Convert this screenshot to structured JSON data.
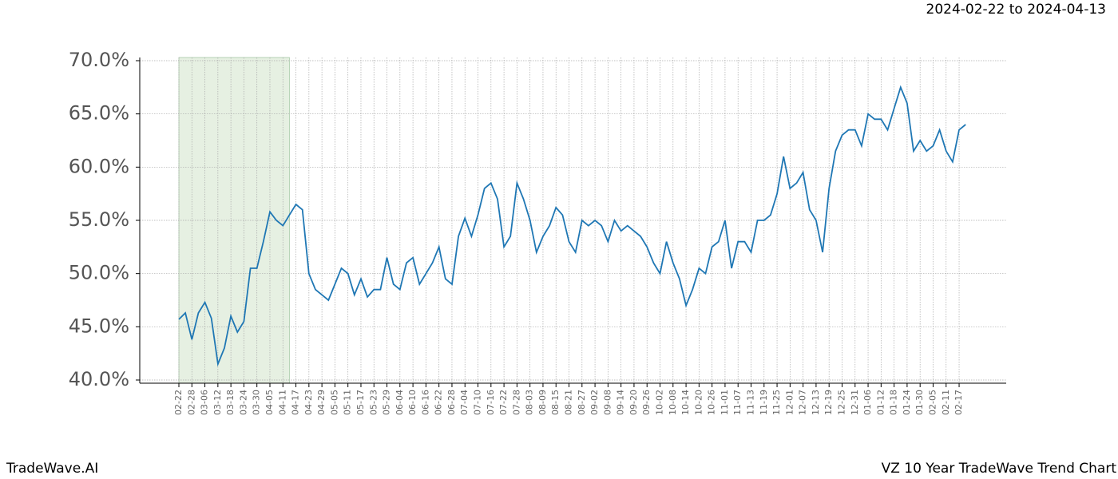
{
  "chart_data": {
    "type": "line",
    "subtitle": "2024-02-22 to 2024-04-13",
    "footer_left": "TradeWave.AI",
    "footer_right": "VZ 10 Year TradeWave Trend Chart",
    "categories": [
      "02-22",
      null,
      "02-28",
      null,
      "03-06",
      null,
      "03-12",
      null,
      "03-18",
      null,
      "03-24",
      null,
      "03-30",
      null,
      "04-05",
      null,
      "04-11",
      null,
      "04-17",
      null,
      "04-23",
      null,
      "04-29",
      null,
      "05-05",
      null,
      "05-11",
      null,
      "05-17",
      null,
      "05-23",
      null,
      "05-29",
      null,
      "06-04",
      null,
      "06-10",
      null,
      "06-16",
      null,
      "06-22",
      null,
      "06-28",
      null,
      "07-04",
      null,
      "07-10",
      null,
      "07-16",
      null,
      "07-22",
      null,
      "07-28",
      null,
      "08-03",
      null,
      "08-09",
      null,
      "08-15",
      null,
      "08-21",
      null,
      "08-27",
      null,
      "09-02",
      null,
      "09-08",
      null,
      "09-14",
      null,
      "09-20",
      null,
      "09-26",
      null,
      "10-02",
      null,
      "10-08",
      null,
      "10-14",
      null,
      "10-20",
      null,
      "10-26",
      null,
      "11-01",
      null,
      "11-07",
      null,
      "11-13",
      null,
      "11-19",
      null,
      "11-25",
      null,
      "12-01",
      null,
      "12-07",
      null,
      "12-13",
      null,
      "12-19",
      null,
      "12-25",
      null,
      "12-31",
      null,
      "01-06",
      null,
      "01-12",
      null,
      "01-18",
      null,
      "01-24",
      null,
      "01-30",
      null,
      "02-05",
      null,
      "02-11",
      null,
      "02-17",
      null
    ],
    "series": [
      {
        "color": "#1f77b4",
        "values": [
          45.7,
          46.3,
          43.8,
          46.3,
          47.3,
          45.8,
          41.5,
          43.0,
          46.0,
          44.5,
          45.5,
          50.5,
          50.5,
          53.0,
          55.8,
          55.0,
          54.5,
          55.5,
          56.5,
          56.0,
          50.0,
          48.5,
          48.0,
          47.5,
          49.0,
          50.5,
          50.0,
          48.0,
          49.5,
          47.8,
          48.5,
          48.5,
          51.5,
          49.0,
          48.5,
          51.0,
          51.5,
          49.0,
          50.0,
          51.0,
          52.5,
          49.5,
          49.0,
          53.5,
          55.2,
          53.5,
          55.5,
          58.0,
          58.5,
          57.0,
          52.5,
          53.5,
          58.5,
          57.0,
          55.0,
          52.0,
          53.5,
          54.5,
          56.2,
          55.5,
          53.0,
          52.0,
          55.0,
          54.5,
          55.0,
          54.5,
          53.0,
          55.0,
          54.0,
          54.5,
          54.0,
          53.5,
          52.5,
          51.0,
          50.0,
          53.0,
          51.0,
          49.5,
          47.0,
          48.5,
          50.5,
          50.0,
          52.5,
          53.0,
          55.0,
          50.5,
          53.0,
          53.0,
          52.0,
          55.0,
          55.0,
          55.5,
          57.5,
          61.0,
          58.0,
          58.5,
          59.5,
          56.0,
          55.0,
          52.0,
          58.0,
          61.5,
          63.0,
          63.5,
          63.5,
          62.0,
          65.0,
          64.5,
          64.5,
          63.5,
          65.5,
          67.5,
          66.0,
          61.5,
          62.5,
          61.5,
          62.0,
          63.5,
          61.5,
          60.5,
          63.5,
          64.0
        ]
      }
    ],
    "highlight_span": [
      0,
      17
    ],
    "highlight_color": "#e6f0e2",
    "ylim": [
      39.7,
      70.3
    ],
    "yticks": [
      {
        "value": 40,
        "label": "40.0%"
      },
      {
        "value": 45,
        "label": "45.0%"
      },
      {
        "value": 50,
        "label": "50.0%"
      },
      {
        "value": 55,
        "label": "55.0%"
      },
      {
        "value": 60,
        "label": "60.0%"
      },
      {
        "value": 65,
        "label": "65.0%"
      },
      {
        "value": 70,
        "label": "70.0%"
      }
    ],
    "grid": true
  }
}
